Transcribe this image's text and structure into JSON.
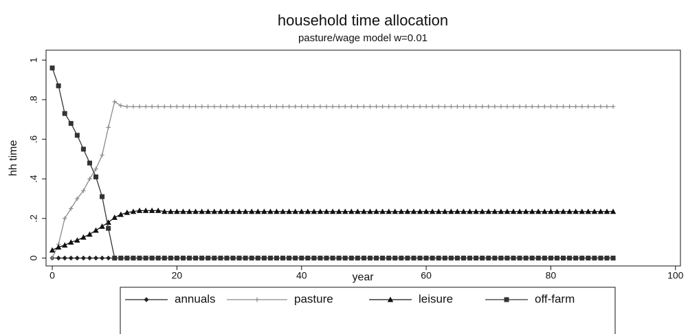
{
  "chart_data": {
    "type": "line",
    "title": "household time allocation",
    "subtitle": "pasture/wage model w=0.01",
    "x_label": "year",
    "y_label": "hh time",
    "xlim": [
      -1,
      100.8
    ],
    "ylim": [
      -0.04,
      1.05
    ],
    "xticks": [
      0,
      20,
      40,
      60,
      80,
      100
    ],
    "yticks": [
      0,
      {
        "value": 0.2,
        "label": ".2"
      },
      {
        "value": 0.4,
        "label": ".4"
      },
      {
        "value": 0.6,
        "label": ".6"
      },
      {
        "value": 0.8,
        "label": ".8"
      },
      1
    ],
    "x": [
      0,
      1,
      2,
      3,
      4,
      5,
      6,
      7,
      8,
      9,
      10,
      11,
      12,
      13,
      14,
      15,
      16,
      17,
      18,
      19,
      20,
      21,
      22,
      23,
      24,
      25,
      26,
      27,
      28,
      29,
      30,
      31,
      32,
      33,
      34,
      35,
      36,
      37,
      38,
      39,
      40,
      41,
      42,
      43,
      44,
      45,
      46,
      47,
      48,
      49,
      50,
      51,
      52,
      53,
      54,
      55,
      56,
      57,
      58,
      59,
      60,
      61,
      62,
      63,
      64,
      65,
      66,
      67,
      68,
      69,
      70,
      71,
      72,
      73,
      74,
      75,
      76,
      77,
      78,
      79,
      80,
      81,
      82,
      83,
      84,
      85,
      86,
      87,
      88,
      89,
      90
    ],
    "legend": "bottom",
    "series": [
      {
        "name": "annuals",
        "color": "#222222",
        "marker": "diamond",
        "values": [
          0,
          0,
          0,
          0,
          0,
          0,
          0,
          0,
          0,
          0,
          0,
          0,
          0,
          0,
          0,
          0,
          0,
          0,
          0,
          0,
          0,
          0,
          0,
          0,
          0,
          0,
          0,
          0,
          0,
          0,
          0,
          0,
          0,
          0,
          0,
          0,
          0,
          0,
          0,
          0,
          0,
          0,
          0,
          0,
          0,
          0,
          0,
          0,
          0,
          0,
          0,
          0,
          0,
          0,
          0,
          0,
          0,
          0,
          0,
          0,
          0,
          0,
          0,
          0,
          0,
          0,
          0,
          0,
          0,
          0,
          0,
          0,
          0,
          0,
          0,
          0,
          0,
          0,
          0,
          0,
          0,
          0,
          0,
          0,
          0,
          0,
          0,
          0,
          0,
          0,
          0
        ]
      },
      {
        "name": "pasture",
        "color": "#8a8a8a",
        "marker": "plus",
        "values": [
          0,
          0.07,
          0.2,
          0.25,
          0.3,
          0.34,
          0.4,
          0.45,
          0.52,
          0.66,
          0.79,
          0.77,
          0.765,
          0.765,
          0.765,
          0.765,
          0.765,
          0.765,
          0.765,
          0.765,
          0.765,
          0.765,
          0.765,
          0.765,
          0.765,
          0.765,
          0.765,
          0.765,
          0.765,
          0.765,
          0.765,
          0.765,
          0.765,
          0.765,
          0.765,
          0.765,
          0.765,
          0.765,
          0.765,
          0.765,
          0.765,
          0.765,
          0.765,
          0.765,
          0.765,
          0.765,
          0.765,
          0.765,
          0.765,
          0.765,
          0.765,
          0.765,
          0.765,
          0.765,
          0.765,
          0.765,
          0.765,
          0.765,
          0.765,
          0.765,
          0.765,
          0.765,
          0.765,
          0.765,
          0.765,
          0.765,
          0.765,
          0.765,
          0.765,
          0.765,
          0.765,
          0.765,
          0.765,
          0.765,
          0.765,
          0.765,
          0.765,
          0.765,
          0.765,
          0.765,
          0.765,
          0.765,
          0.765,
          0.765,
          0.765,
          0.765,
          0.765,
          0.765,
          0.765,
          0.765,
          0.765
        ]
      },
      {
        "name": "leisure",
        "color": "#111111",
        "marker": "triangle",
        "values": [
          0.04,
          0.055,
          0.065,
          0.08,
          0.09,
          0.105,
          0.12,
          0.14,
          0.16,
          0.18,
          0.205,
          0.22,
          0.23,
          0.235,
          0.24,
          0.24,
          0.24,
          0.24,
          0.235,
          0.235,
          0.235,
          0.235,
          0.235,
          0.235,
          0.235,
          0.235,
          0.235,
          0.235,
          0.235,
          0.235,
          0.235,
          0.235,
          0.235,
          0.235,
          0.235,
          0.235,
          0.235,
          0.235,
          0.235,
          0.235,
          0.235,
          0.235,
          0.235,
          0.235,
          0.235,
          0.235,
          0.235,
          0.235,
          0.235,
          0.235,
          0.235,
          0.235,
          0.235,
          0.235,
          0.235,
          0.235,
          0.235,
          0.235,
          0.235,
          0.235,
          0.235,
          0.235,
          0.235,
          0.235,
          0.235,
          0.235,
          0.235,
          0.235,
          0.235,
          0.235,
          0.235,
          0.235,
          0.235,
          0.235,
          0.235,
          0.235,
          0.235,
          0.235,
          0.235,
          0.235,
          0.235,
          0.235,
          0.235,
          0.235,
          0.235,
          0.235,
          0.235,
          0.235,
          0.235,
          0.235,
          0.235
        ]
      },
      {
        "name": "off-farm",
        "color": "#333333",
        "marker": "square",
        "values": [
          0.96,
          0.87,
          0.73,
          0.68,
          0.62,
          0.55,
          0.48,
          0.41,
          0.31,
          0.15,
          0,
          0,
          0,
          0,
          0,
          0,
          0,
          0,
          0,
          0,
          0,
          0,
          0,
          0,
          0,
          0,
          0,
          0,
          0,
          0,
          0,
          0,
          0,
          0,
          0,
          0,
          0,
          0,
          0,
          0,
          0,
          0,
          0,
          0,
          0,
          0,
          0,
          0,
          0,
          0,
          0,
          0,
          0,
          0,
          0,
          0,
          0,
          0,
          0,
          0,
          0,
          0,
          0,
          0,
          0,
          0,
          0,
          0,
          0,
          0,
          0,
          0,
          0,
          0,
          0,
          0,
          0,
          0,
          0,
          0,
          0,
          0,
          0,
          0,
          0,
          0,
          0,
          0,
          0,
          0,
          0
        ]
      }
    ]
  }
}
